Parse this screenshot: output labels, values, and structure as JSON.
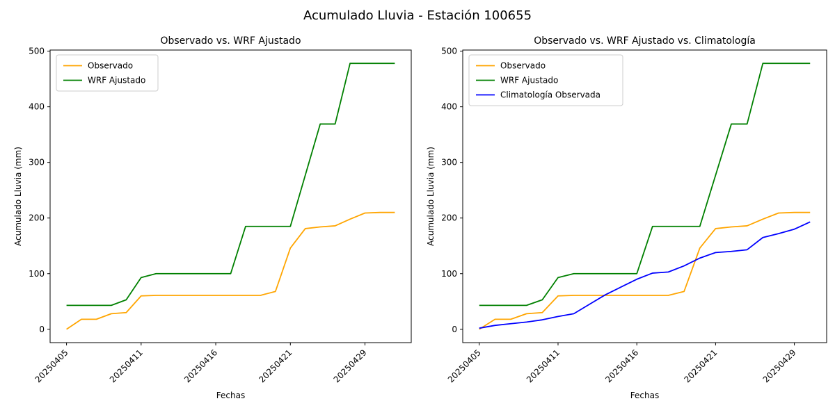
{
  "figure": {
    "suptitle": "Acumulado Lluvia - Estación 100655",
    "background": "#ffffff",
    "text_color": "#000000",
    "spine_color": "#000000",
    "legend_border_color": "#cccccc"
  },
  "chart_data": [
    {
      "type": "line",
      "title": "Observado vs. WRF Ajustado",
      "xlabel": "Fechas",
      "ylabel": "Acumulado Lluvia (mm)",
      "ylim": [
        -24,
        502
      ],
      "yticks": [
        0,
        100,
        200,
        300,
        400,
        500
      ],
      "x_tick_labels": [
        "20250405",
        "20250411",
        "20250416",
        "20250421",
        "20250429"
      ],
      "x_tick_positions": [
        0,
        5,
        10,
        15,
        20
      ],
      "x_tick_rotation": 45,
      "n_points": 23,
      "grid": false,
      "legend_position": "upper left",
      "series": [
        {
          "name": "Observado",
          "color": "#ffa500",
          "values": [
            0,
            18,
            18,
            28,
            30,
            60,
            61,
            61,
            61,
            61,
            61,
            61,
            61,
            61,
            68,
            146,
            181,
            184,
            186,
            198,
            209,
            210,
            210
          ]
        },
        {
          "name": "WRF Ajustado",
          "color": "#008000",
          "values": [
            43,
            43,
            43,
            43,
            53,
            93,
            100,
            100,
            100,
            100,
            100,
            100,
            185,
            185,
            185,
            185,
            277,
            369,
            369,
            478,
            478,
            478,
            478
          ]
        }
      ]
    },
    {
      "type": "line",
      "title": "Observado vs. WRF Ajustado vs. Climatología",
      "xlabel": "Fechas",
      "ylabel": "Acumulado Lluvia (mm)",
      "ylim": [
        -24,
        502
      ],
      "yticks": [
        0,
        100,
        200,
        300,
        400,
        500
      ],
      "x_tick_labels": [
        "20250405",
        "20250411",
        "20250416",
        "20250421",
        "20250429"
      ],
      "x_tick_positions": [
        0,
        5,
        10,
        15,
        20
      ],
      "x_tick_rotation": 45,
      "n_points": 22,
      "grid": false,
      "legend_position": "upper left",
      "series": [
        {
          "name": "Observado",
          "color": "#ffa500",
          "values": [
            0,
            18,
            18,
            28,
            30,
            60,
            61,
            61,
            61,
            61,
            61,
            61,
            61,
            68,
            146,
            181,
            184,
            186,
            198,
            209,
            210,
            210
          ]
        },
        {
          "name": "WRF Ajustado",
          "color": "#008000",
          "values": [
            43,
            43,
            43,
            43,
            53,
            93,
            100,
            100,
            100,
            100,
            100,
            185,
            185,
            185,
            185,
            277,
            369,
            369,
            478,
            478,
            478,
            478
          ]
        },
        {
          "name": "Climatología Observada",
          "color": "#0000ff",
          "values": [
            2,
            7,
            10,
            13,
            17,
            23,
            28,
            45,
            62,
            76,
            90,
            101,
            103,
            114,
            128,
            138,
            140,
            143,
            165,
            172,
            180,
            193
          ]
        }
      ]
    }
  ]
}
